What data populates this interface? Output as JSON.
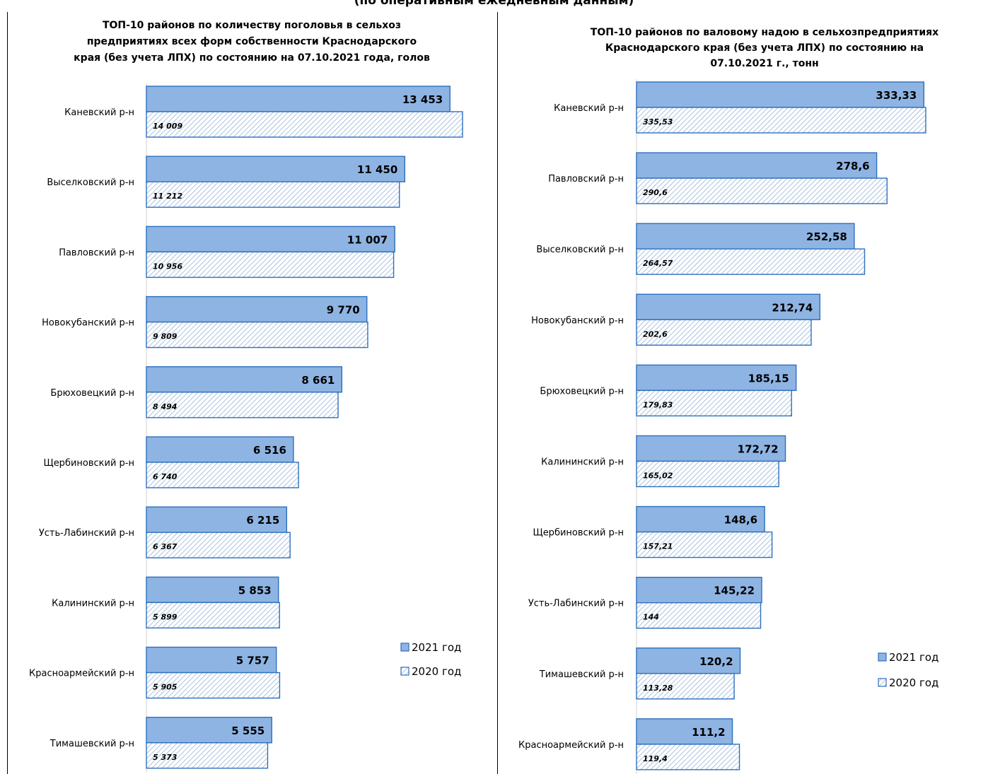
{
  "page": {
    "header_text": "(по оперативным ежедневным данным)"
  },
  "chart_data": [
    {
      "type": "bar",
      "orientation": "horizontal",
      "title": "ТОП-10 районов по количеству поголовья в сельхоз предприятиях всех форм собственности  Краснодарского края (без учета ЛПХ)  по состоянию на 07.10.2021 года, голов",
      "title_lines": [
        "ТОП-10 районов по количеству поголовья в сельхоз",
        "предприятиях всех форм собственности  Краснодарского",
        "края (без учета ЛПХ)  по состоянию на 07.10.2021 года, голов"
      ],
      "categories": [
        "Каневский р-н",
        "Выселковский р-н",
        "Павловский р-н",
        "Новокубанский р-н",
        "Брюховецкий р-н",
        "Щербиновский р-н",
        "Усть-Лабинский р-н",
        "Калининский р-н",
        "Красноармейский р-н",
        "Тимашевский р-н"
      ],
      "series": [
        {
          "name": "2021 год",
          "values": [
            13453,
            11450,
            11007,
            9770,
            8661,
            6516,
            6215,
            5853,
            5757,
            5555
          ],
          "labels": [
            "13 453",
            "11 450",
            "11 007",
            "9 770",
            "8 661",
            "6 516",
            "6 215",
            "5 853",
            "5 757",
            "5 555"
          ]
        },
        {
          "name": "2020 год",
          "values": [
            14009,
            11212,
            10956,
            9809,
            8494,
            6740,
            6367,
            5899,
            5905,
            5373
          ],
          "labels": [
            "14 009",
            "11 212",
            "10 956",
            "9 809",
            "8 494",
            "6 740",
            "6 367",
            "5 899",
            "5 905",
            "5 373"
          ]
        }
      ],
      "xlim": [
        0,
        14009
      ],
      "grid": false,
      "legend_position": "right",
      "colors": {
        "fill_2021": "#8eb4e3",
        "stroke": "#2e6fbd",
        "hatch_2020": "#95b3d7"
      }
    },
    {
      "type": "bar",
      "orientation": "horizontal",
      "title": "ТОП-10 районов по валовому надою в сельхозпредприятиях Краснодарского края (без учета ЛПХ) по состоянию на 07.10.2021 г., тонн",
      "title_lines": [
        "ТОП-10 районов по валовому надою в сельхозпредприятиях",
        "Краснодарского края (без учета ЛПХ) по состоянию на",
        "07.10.2021 г., тонн"
      ],
      "categories": [
        "Каневский р-н",
        "Павловский р-н",
        "Выселковский р-н",
        "Новокубанский р-н",
        "Брюховецкий р-н",
        "Калининский р-н",
        "Щербиновский р-н",
        "Усть-Лабинский р-н",
        "Тимашевский р-н",
        "Красноармейский р-н"
      ],
      "series": [
        {
          "name": "2021 год",
          "values": [
            333.33,
            278.6,
            252.58,
            212.74,
            185.15,
            172.72,
            148.6,
            145.22,
            120.2,
            111.2
          ],
          "labels": [
            "333,33",
            "278,6",
            "252,58",
            "212,74",
            "185,15",
            "172,72",
            "148,6",
            "145,22",
            "120,2",
            "111,2"
          ]
        },
        {
          "name": "2020 год",
          "values": [
            335.53,
            290.6,
            264.57,
            202.6,
            179.83,
            165.02,
            157.21,
            144,
            113.28,
            119.4
          ],
          "labels": [
            "335,53",
            "290,6",
            "264,57",
            "202,6",
            "179,83",
            "165,02",
            "157,21",
            "144",
            "113,28",
            "119,4"
          ]
        }
      ],
      "xlim": [
        0,
        335.53
      ],
      "grid": false,
      "legend_position": "right",
      "colors": {
        "fill_2021": "#8eb4e3",
        "stroke": "#2e6fbd",
        "hatch_2020": "#95b3d7"
      }
    }
  ]
}
